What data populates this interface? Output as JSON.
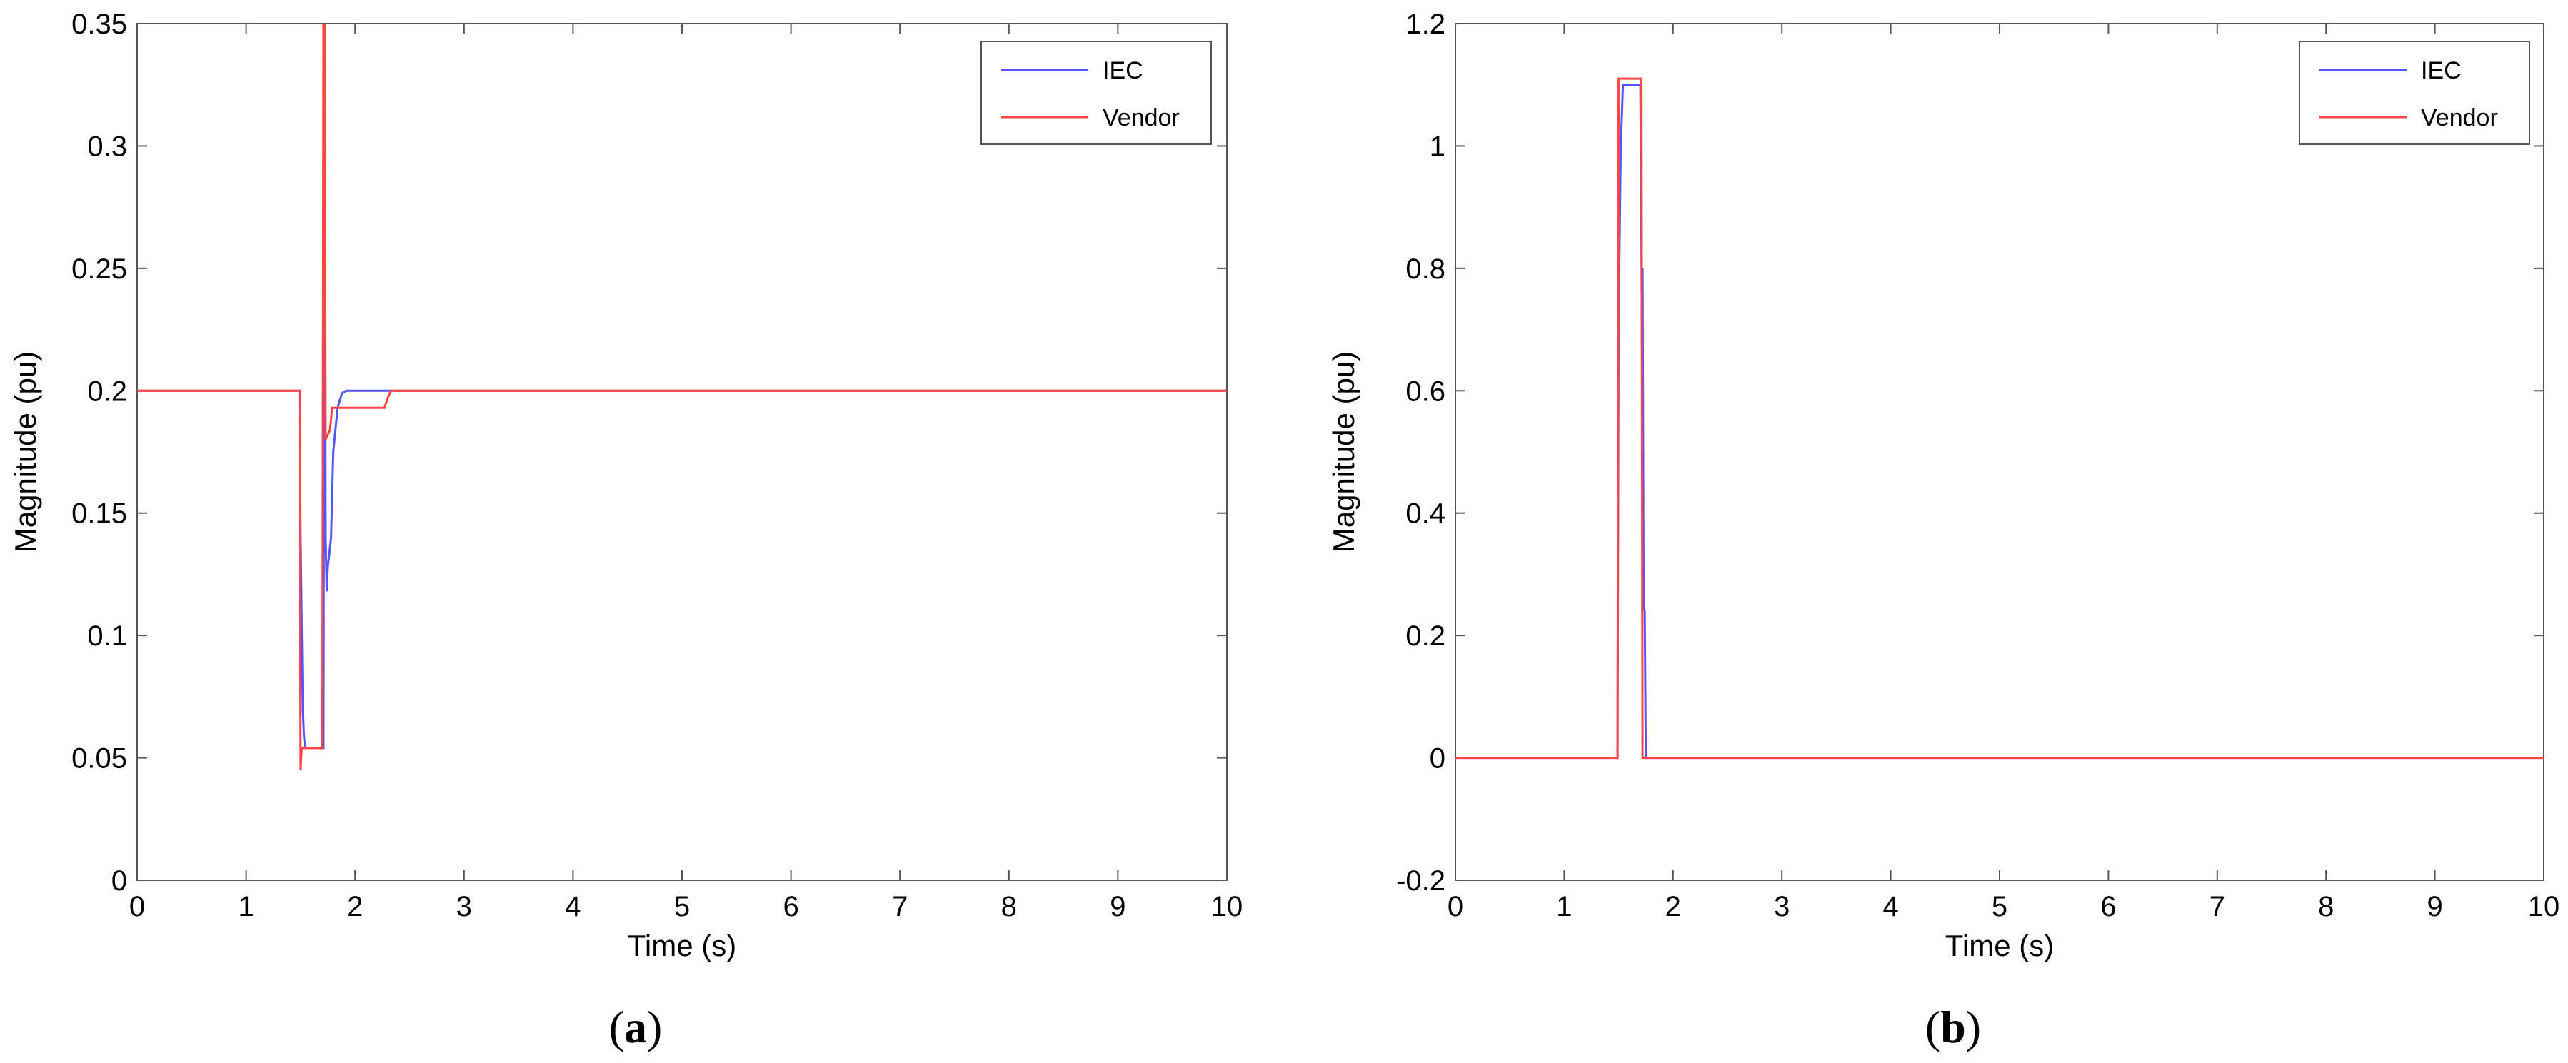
{
  "figure": {
    "panels": [
      "a",
      "b"
    ]
  },
  "chart_data": [
    {
      "type": "line",
      "panel_label": "a",
      "caption": {
        "open": "(",
        "letter": "a",
        "close": ")"
      },
      "title": "",
      "xlabel": "Time (s)",
      "ylabel": "Magnitude (pu)",
      "xlim": [
        0,
        10
      ],
      "ylim": [
        0,
        0.35
      ],
      "xticks": [
        0,
        1,
        2,
        3,
        4,
        5,
        6,
        7,
        8,
        9,
        10
      ],
      "xtick_labels": [
        "0",
        "1",
        "2",
        "3",
        "4",
        "5",
        "6",
        "7",
        "8",
        "9",
        "10"
      ],
      "yticks": [
        0,
        0.05,
        0.1,
        0.15,
        0.2,
        0.25,
        0.3,
        0.35
      ],
      "ytick_labels": [
        "0",
        "0.05",
        "0.1",
        "0.15",
        "0.2",
        "0.25",
        "0.3",
        "0.35"
      ],
      "grid": false,
      "legend": {
        "position": "top-right",
        "entries": [
          "IEC",
          "Vendor"
        ]
      },
      "series": [
        {
          "name": "IEC",
          "color": "#5555ff",
          "points": [
            [
              0,
              0.2
            ],
            [
              1.49,
              0.2
            ],
            [
              1.5,
              0.14
            ],
            [
              1.51,
              0.105
            ],
            [
              1.52,
              0.07
            ],
            [
              1.53,
              0.06
            ],
            [
              1.54,
              0.054
            ],
            [
              1.71,
              0.054
            ],
            [
              1.72,
              0.33
            ],
            [
              1.73,
              0.14
            ],
            [
              1.74,
              0.118
            ],
            [
              1.75,
              0.128
            ],
            [
              1.78,
              0.14
            ],
            [
              1.8,
              0.175
            ],
            [
              1.84,
              0.193
            ],
            [
              1.88,
              0.199
            ],
            [
              1.92,
              0.2
            ],
            [
              10,
              0.2
            ]
          ]
        },
        {
          "name": "Vendor",
          "color": "#ff4444",
          "points": [
            [
              0,
              0.2
            ],
            [
              1.49,
              0.2
            ],
            [
              1.5,
              0.045
            ],
            [
              1.51,
              0.054
            ],
            [
              1.7,
              0.054
            ],
            [
              1.71,
              0.35
            ],
            [
              1.72,
              0.35
            ],
            [
              1.73,
              0.18
            ],
            [
              1.77,
              0.184
            ],
            [
              1.79,
              0.193
            ],
            [
              2.27,
              0.193
            ],
            [
              2.3,
              0.197
            ],
            [
              2.33,
              0.2
            ],
            [
              10,
              0.2
            ]
          ]
        }
      ]
    },
    {
      "type": "line",
      "panel_label": "b",
      "caption": {
        "open": "(",
        "letter": "b",
        "close": ")"
      },
      "title": "",
      "xlabel": "Time (s)",
      "ylabel": "Magnitude (pu)",
      "xlim": [
        0,
        10
      ],
      "ylim": [
        -0.2,
        1.2
      ],
      "xticks": [
        0,
        1,
        2,
        3,
        4,
        5,
        6,
        7,
        8,
        9,
        10
      ],
      "xtick_labels": [
        "0",
        "1",
        "2",
        "3",
        "4",
        "5",
        "6",
        "7",
        "8",
        "9",
        "10"
      ],
      "yticks": [
        -0.2,
        0,
        0.2,
        0.4,
        0.6,
        0.8,
        1,
        1.2
      ],
      "ytick_labels": [
        "-0.2",
        "0",
        "0.2",
        "0.4",
        "0.6",
        "0.8",
        "1",
        "1.2"
      ],
      "grid": false,
      "legend": {
        "position": "top-right",
        "entries": [
          "IEC",
          "Vendor"
        ]
      },
      "series": [
        {
          "name": "IEC",
          "color": "#5555ff",
          "points": [
            [
              0,
              0
            ],
            [
              1.49,
              0
            ],
            [
              1.5,
              0.72
            ],
            [
              1.52,
              1.0
            ],
            [
              1.54,
              1.1
            ],
            [
              1.7,
              1.1
            ],
            [
              1.71,
              0.84
            ],
            [
              1.715,
              0.66
            ],
            [
              1.72,
              0.8
            ],
            [
              1.73,
              0.25
            ],
            [
              1.74,
              0.24
            ],
            [
              1.75,
              0
            ],
            [
              10,
              0
            ]
          ]
        },
        {
          "name": "Vendor",
          "color": "#ff4444",
          "points": [
            [
              0,
              0
            ],
            [
              1.49,
              0
            ],
            [
              1.5,
              1.11
            ],
            [
              1.71,
              1.11
            ],
            [
              1.72,
              0
            ],
            [
              10,
              0
            ]
          ]
        }
      ]
    }
  ]
}
